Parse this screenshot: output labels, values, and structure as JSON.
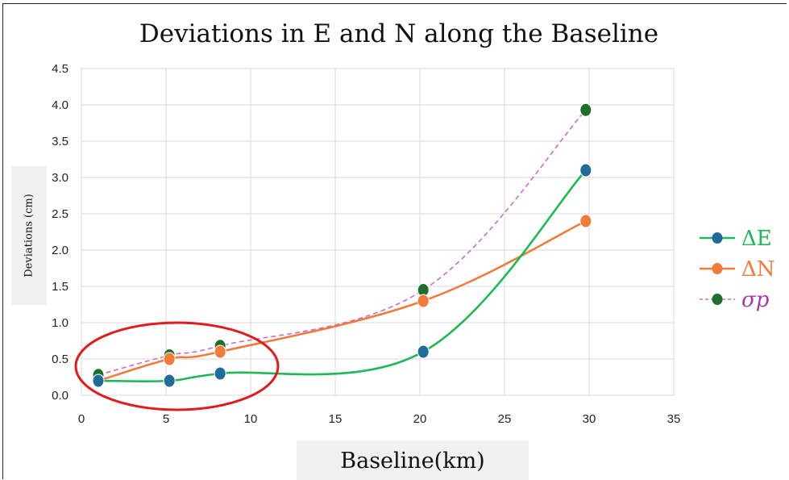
{
  "chart_data": {
    "type": "line",
    "title": "Deviations in E and N along the Baseline",
    "xlabel": "Baseline(km)",
    "ylabel": "Deviations (cm)",
    "xlim": [
      0,
      35
    ],
    "ylim": [
      0,
      4.5
    ],
    "xticks": [
      "0",
      "5",
      "10",
      "15",
      "20",
      "25",
      "30",
      "35"
    ],
    "yticks": [
      "0.0",
      "0.5",
      "1.0",
      "1.5",
      "2.0",
      "2.5",
      "3.0",
      "3.5",
      "4.0",
      "4.5"
    ],
    "grid": true,
    "legend_position": "right",
    "x": [
      1,
      5.2,
      8.2,
      20.2,
      29.8
    ],
    "series": [
      {
        "name": "ΔE",
        "values": [
          0.2,
          0.2,
          0.3,
          0.6,
          3.1
        ],
        "line_color": "#1db954",
        "marker_color": "#1f6b9a",
        "style": "solid"
      },
      {
        "name": "ΔN",
        "values": [
          0.2,
          0.5,
          0.6,
          1.3,
          2.4
        ],
        "line_color": "#f07b3a",
        "marker_color": "#f07b3a",
        "style": "solid"
      },
      {
        "name": "σp",
        "values": [
          0.28,
          0.55,
          0.68,
          1.45,
          3.93
        ],
        "line_color": "#c86dd0",
        "marker_color": "#1e6e2c",
        "style": "dashed"
      }
    ],
    "annotation": {
      "shape": "ellipse",
      "color": "#e11b1b",
      "x_range": [
        0,
        11
      ],
      "y_range": [
        -0.2,
        1.0
      ]
    }
  }
}
